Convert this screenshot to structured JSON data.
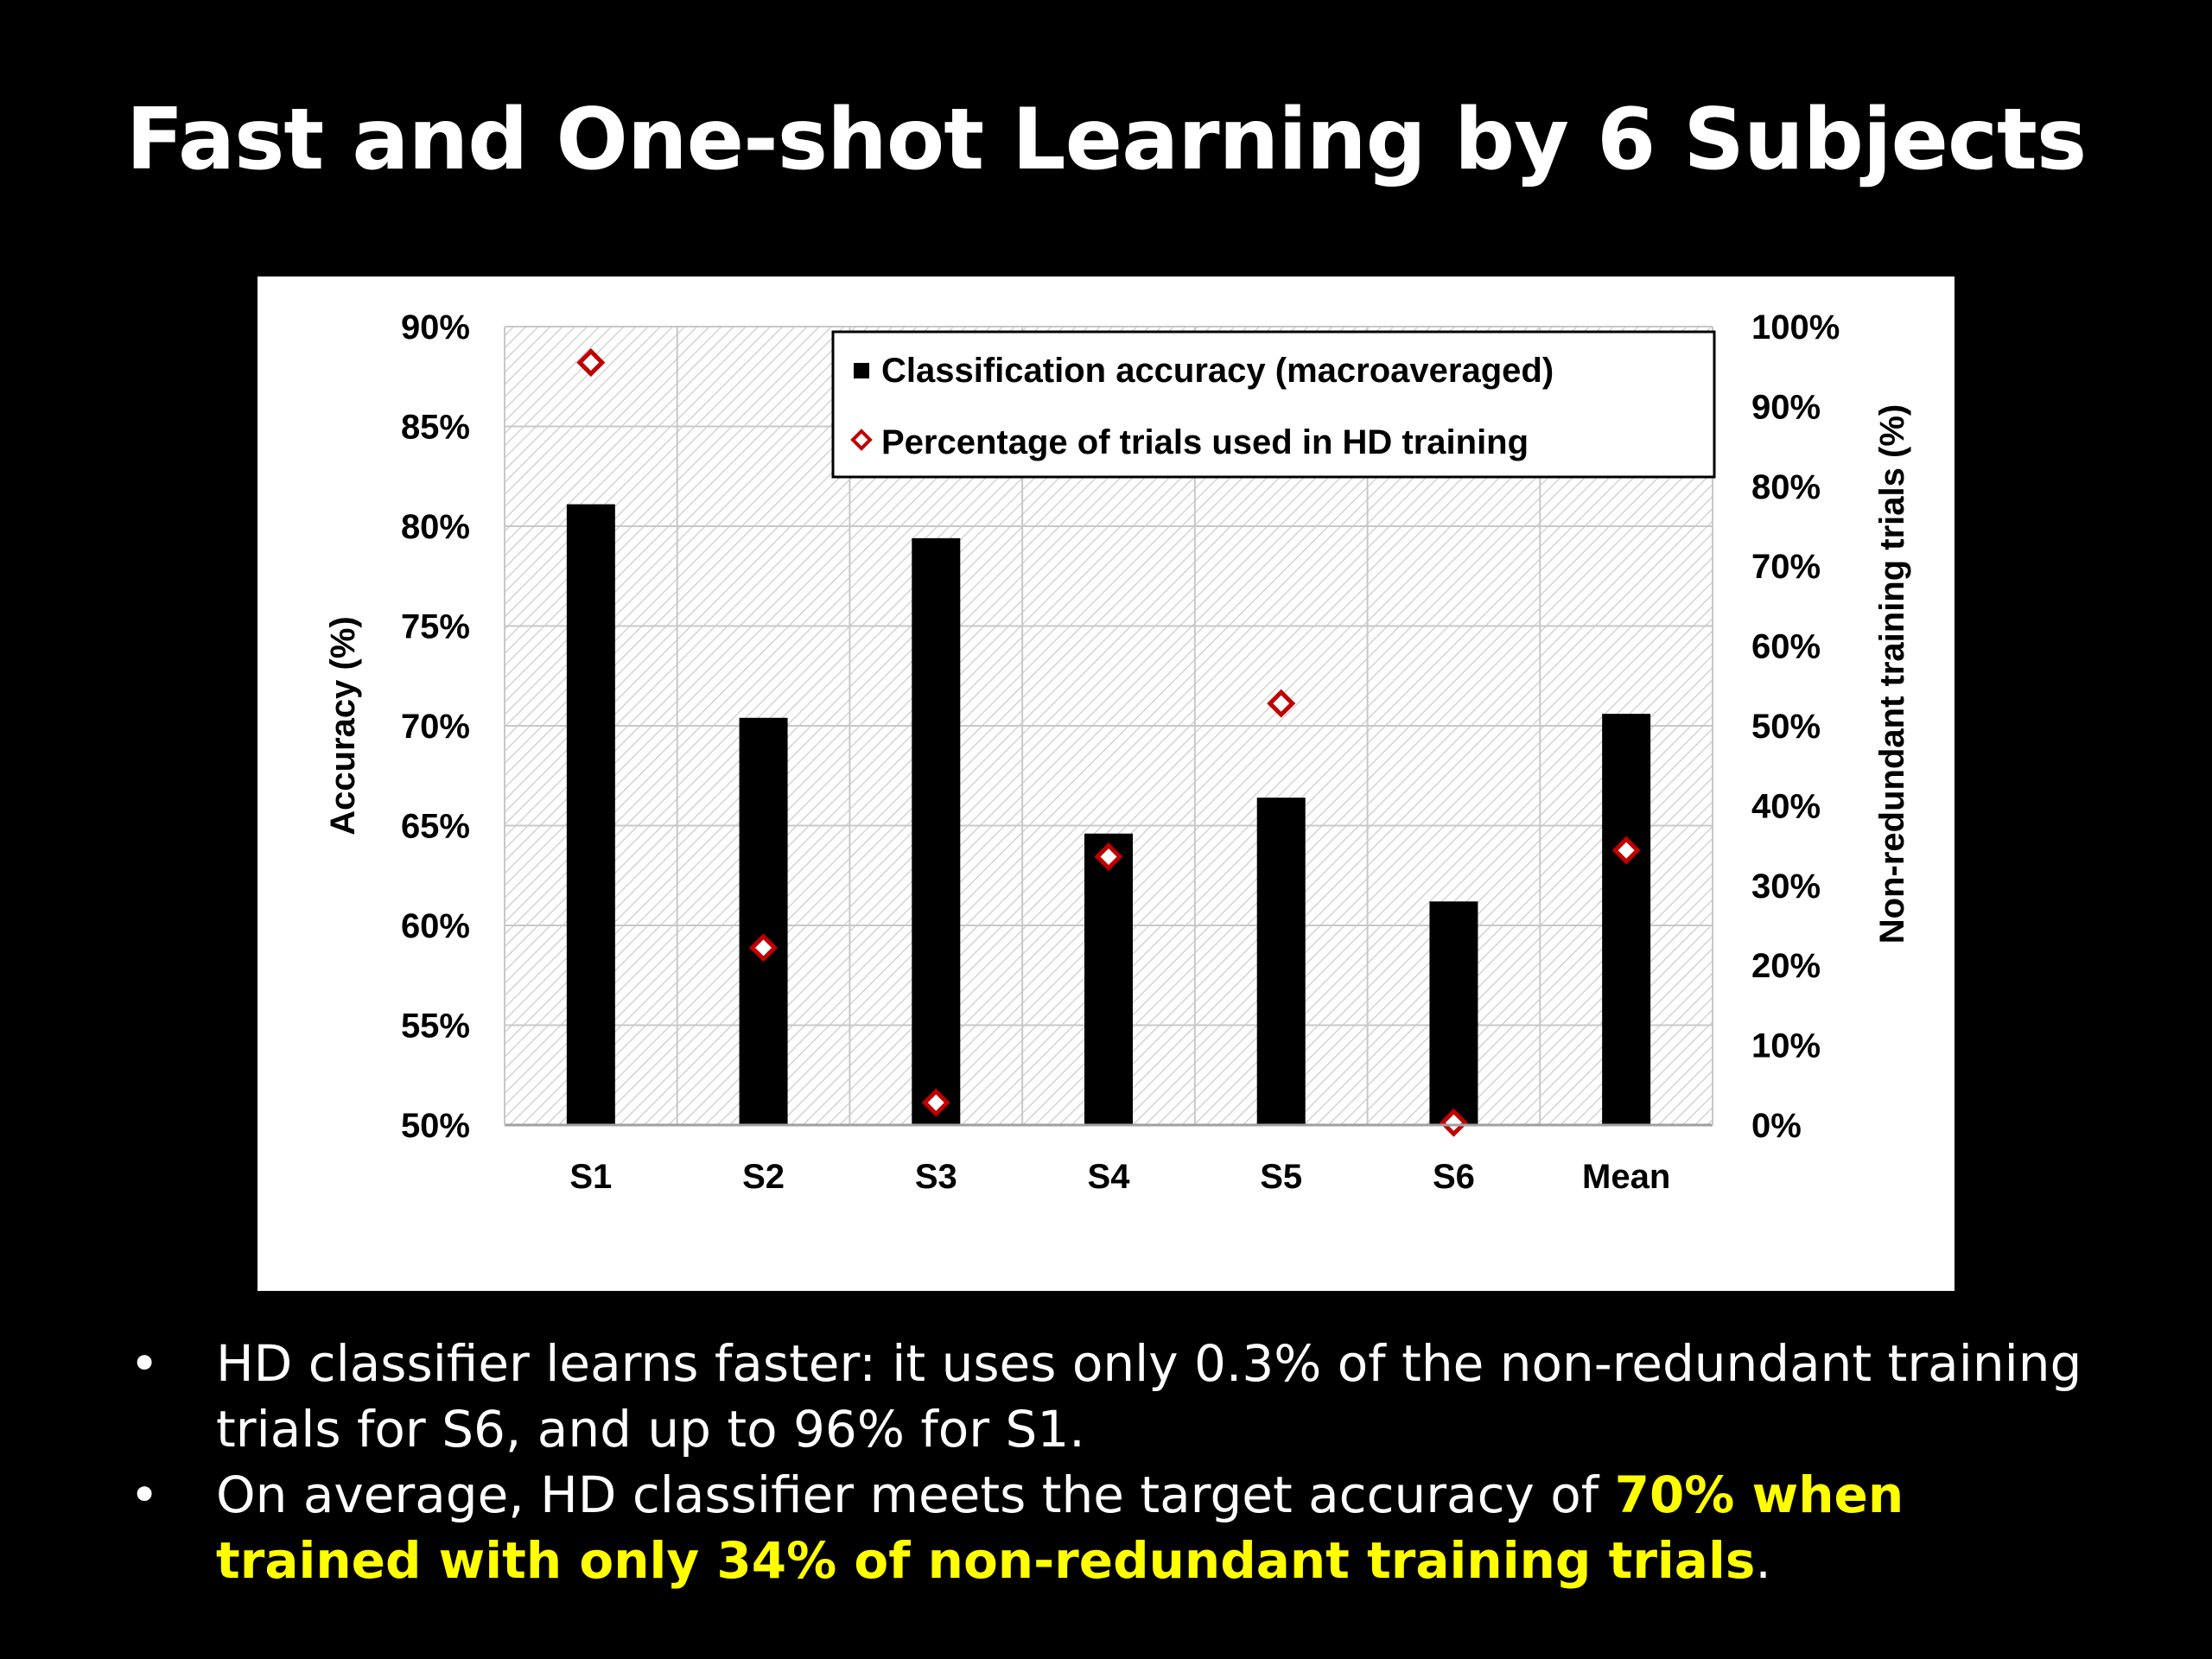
{
  "slide": {
    "title": "Fast and One-shot Learning by 6 Subjects",
    "colors": {
      "background": "#000000",
      "text": "#ffffff",
      "highlight": "#ffff00"
    }
  },
  "chart_data": {
    "type": "bar",
    "categories": [
      "S1",
      "S2",
      "S3",
      "S4",
      "S5",
      "S6",
      "Mean"
    ],
    "series": [
      {
        "name": "Classification accuracy (macroaveraged)",
        "type": "bar",
        "axis": "left",
        "color": "#000000",
        "values": [
          81.1,
          70.4,
          79.4,
          64.6,
          66.4,
          61.2,
          70.6
        ]
      },
      {
        "name": "Percentage of trials used in HD training",
        "type": "scatter",
        "marker": "diamond",
        "axis": "right",
        "color": "#c00000",
        "values": [
          95.5,
          22.2,
          2.8,
          33.6,
          52.8,
          0.3,
          34.4
        ]
      }
    ],
    "y_left": {
      "label": "Accuracy (%)",
      "ylim": [
        50,
        90
      ],
      "ticks": [
        "50%",
        "55%",
        "60%",
        "65%",
        "70%",
        "75%",
        "80%",
        "85%",
        "90%"
      ]
    },
    "y_right": {
      "label": "Non-redundant  training  trials (%)",
      "ylim": [
        0,
        100
      ],
      "ticks": [
        "0%",
        "10%",
        "20%",
        "30%",
        "40%",
        "50%",
        "60%",
        "70%",
        "80%",
        "90%",
        "100%"
      ]
    },
    "grid": true,
    "legend": "top-right"
  },
  "bullets": [
    {
      "marker": "•",
      "parts": [
        {
          "text": "HD classifier learns faster: it uses only 0.3% of the non-redundant training trials for S6, and up to 96% for S1.",
          "highlight": false
        }
      ]
    },
    {
      "marker": "•",
      "parts": [
        {
          "text": "On average, HD classifier meets the target accuracy of ",
          "highlight": false
        },
        {
          "text": "70% when trained with only 34% of non-redundant training trials",
          "highlight": true
        },
        {
          "text": ".",
          "highlight": false
        }
      ]
    }
  ]
}
